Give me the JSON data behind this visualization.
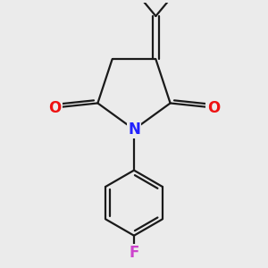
{
  "background_color": "#ebebeb",
  "bond_color": "#1a1a1a",
  "N_color": "#2222ff",
  "O_color": "#ee1111",
  "F_color": "#cc44cc",
  "line_width": 1.6,
  "font_size_atom": 12,
  "fig_width": 3.0,
  "fig_height": 3.0,
  "dpi": 100,
  "xlim": [
    -2.2,
    2.2
  ],
  "ylim": [
    -3.0,
    2.8
  ]
}
